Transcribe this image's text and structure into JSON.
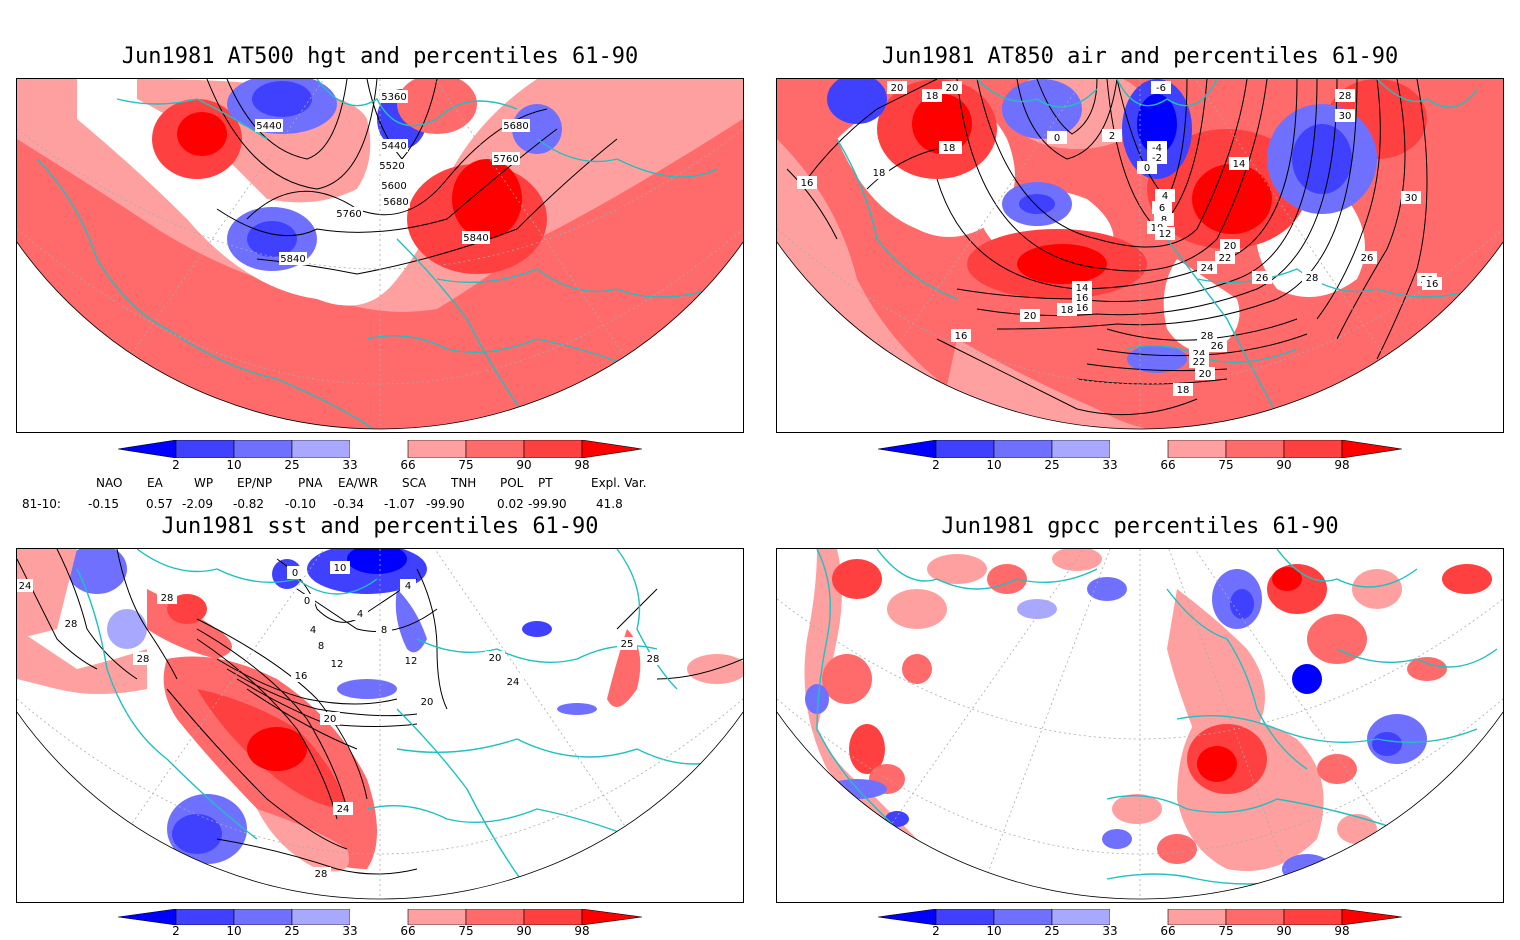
{
  "panels": {
    "hgt": {
      "title": "Jun1981 AT500 hgt and percentiles 61-90",
      "contour_labels": [
        "5360",
        "5440",
        "5680",
        "5440",
        "5520",
        "5760",
        "5600",
        "5680",
        "5760",
        "5840",
        "5840"
      ]
    },
    "air": {
      "title": "Jun1981 AT850 air and percentiles 61-90",
      "contour_labels": [
        "20",
        "20",
        "18",
        "-6",
        "0",
        "2",
        "-4",
        "-2",
        "0",
        "18",
        "28",
        "30",
        "16",
        "18",
        "18",
        "14",
        "4",
        "6",
        "8",
        "10",
        "12",
        "30",
        "20",
        "22",
        "24",
        "26",
        "28",
        "26",
        "16",
        "14",
        "16",
        "18",
        "20",
        "20",
        "16",
        "28",
        "26",
        "24",
        "22",
        "20",
        "18",
        "16"
      ]
    },
    "sst": {
      "title": "Jun1981 sst and percentiles 61-90",
      "contour_labels": [
        "24",
        "28",
        "28",
        "28",
        "0",
        "10",
        "0",
        "4",
        "4",
        "4",
        "8",
        "8",
        "12",
        "16",
        "12",
        "20",
        "20",
        "24",
        "20",
        "24",
        "28",
        "25",
        "28"
      ]
    },
    "gpcc": {
      "title": "Jun1981 gpcc percentiles 61-90"
    }
  },
  "colorbar": {
    "labels": [
      "2",
      "10",
      "25",
      "33",
      "66",
      "75",
      "90",
      "98"
    ],
    "colors": {
      "blue_strong": "#0000ff",
      "blue_mid": "#4040ff",
      "blue_light": "#7070ff",
      "blue_pale": "#a8a8ff",
      "red_pale": "#ffa0a0",
      "red_light": "#ff6a6a",
      "red_mid": "#ff4040",
      "red_strong": "#ff0000"
    }
  },
  "indices": {
    "headers": [
      "NAO",
      "EA",
      "WP",
      "EP/NP",
      "PNA",
      "EA/WR",
      "SCA",
      "TNH",
      "POL",
      "PT",
      "Expl. Var."
    ],
    "row_label": "81-10:",
    "values": [
      "-0.15",
      "0.57",
      "-2.09",
      "-0.82",
      "-0.10",
      "-0.34",
      "-1.07",
      "-99.90",
      "0.02",
      "-99.90",
      "41.8"
    ]
  },
  "coast_color": "#20c0c0"
}
